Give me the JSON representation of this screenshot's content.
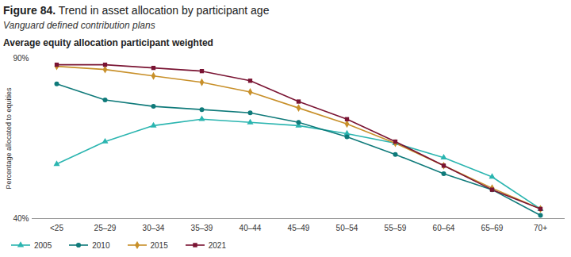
{
  "chart_data": {
    "type": "line",
    "title": "Figure 84. Trend in asset allocation by participant age",
    "subtitle": "Vanguard defined contribution plans",
    "plot_title": "Average equity allocation participant weighted",
    "ylabel": "Percentage allocated to equities",
    "categories": [
      "<25",
      "25–29",
      "30–34",
      "35–39",
      "40–44",
      "45–49",
      "50–54",
      "55–59",
      "60–64",
      "65–69",
      "70+"
    ],
    "series": [
      {
        "name": "2005",
        "color": "#2bb5b0",
        "marker": "triangle",
        "values": [
          57,
          64,
          69,
          71,
          70,
          69,
          66.5,
          63.5,
          59,
          53,
          43
        ]
      },
      {
        "name": "2010",
        "color": "#0f7a7a",
        "marker": "circle",
        "values": [
          82,
          77,
          75,
          74,
          73,
          70,
          65.5,
          60,
          54,
          49,
          41
        ]
      },
      {
        "name": "2015",
        "color": "#c8902a",
        "marker": "diamond",
        "values": [
          87.5,
          86.5,
          84.5,
          82.5,
          79.5,
          74.5,
          69.5,
          63.5,
          56.5,
          49.5,
          43
        ]
      },
      {
        "name": "2021",
        "color": "#7a1433",
        "marker": "square",
        "values": [
          88,
          88,
          87,
          86,
          83,
          76.5,
          71,
          64,
          56.5,
          49,
          43
        ]
      }
    ],
    "ylim": [
      40,
      90
    ],
    "yticks": [
      {
        "value": 40,
        "label": "40%"
      },
      {
        "value": 90,
        "label": "90%"
      }
    ],
    "grid": false,
    "legend": "bottom"
  }
}
